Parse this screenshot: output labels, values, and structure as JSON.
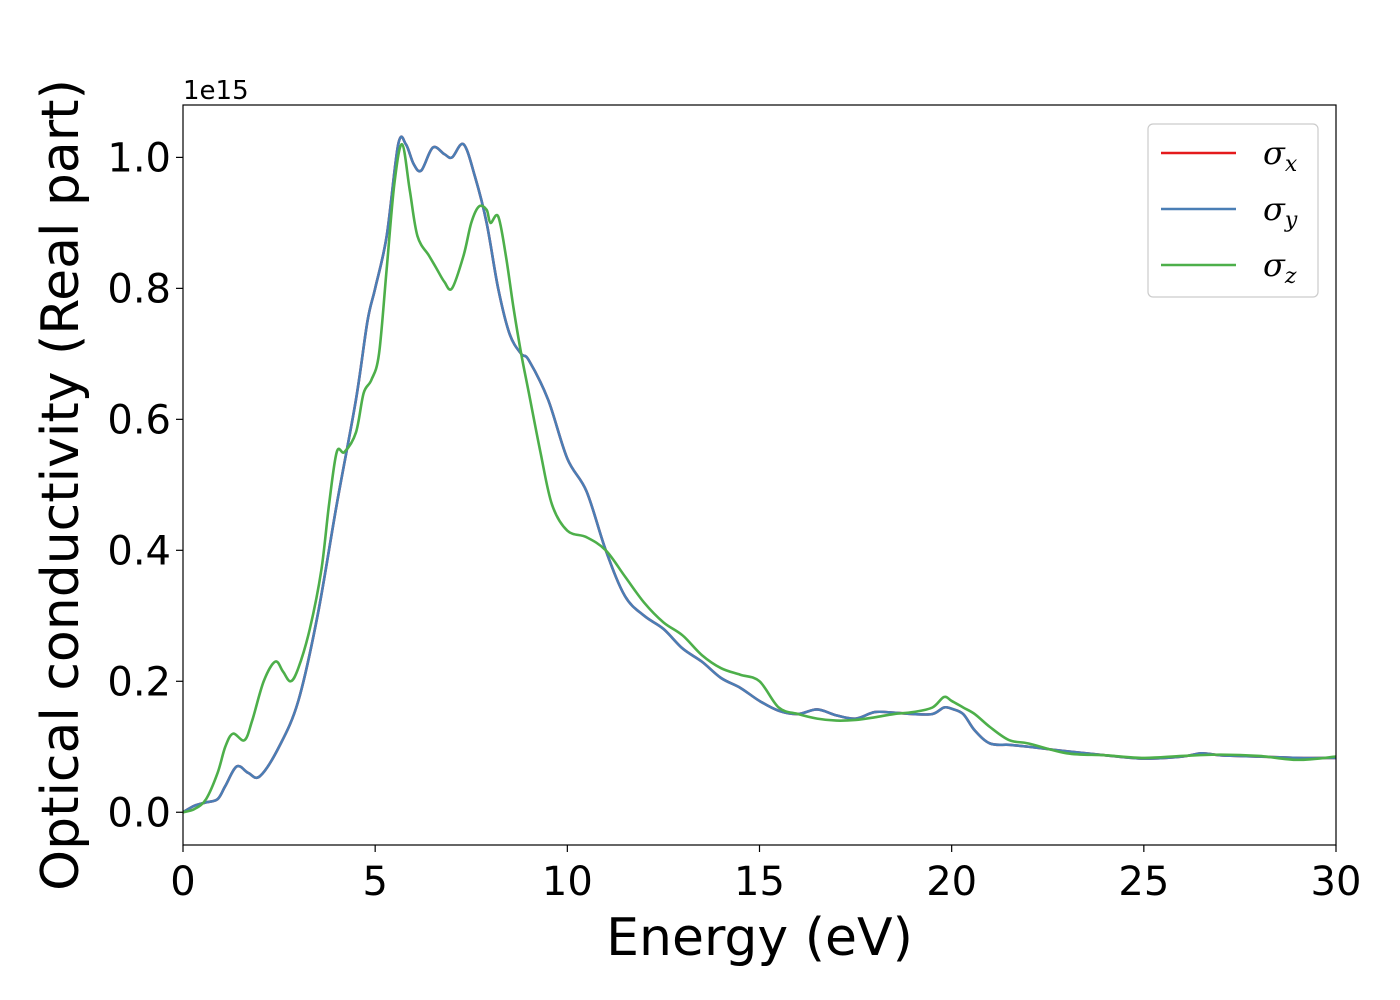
{
  "chart_data": {
    "type": "line",
    "title": "",
    "xlabel": "Energy (eV)",
    "ylabel": "Optical conductivity (Real part)",
    "y_offset_text": "1e15",
    "y_scale": 1000000000000000.0,
    "xlim": [
      0,
      30
    ],
    "ylim": [
      -0.05,
      1.08
    ],
    "x_ticks": [
      0,
      5,
      10,
      15,
      20,
      25,
      30
    ],
    "x_tick_labels": [
      "0",
      "5",
      "10",
      "15",
      "20",
      "25",
      "30"
    ],
    "y_ticks": [
      0.0,
      0.2,
      0.4,
      0.6,
      0.8,
      1.0
    ],
    "y_tick_labels": [
      "0.0",
      "0.2",
      "0.4",
      "0.6",
      "0.8",
      "1.0"
    ],
    "grid": false,
    "legend_position": "top-right",
    "series": [
      {
        "name": "σx",
        "label_base": "σ",
        "label_sub": "x",
        "color": "#e41a1c",
        "x": [
          0,
          0.3,
          0.6,
          0.9,
          1.1,
          1.4,
          1.7,
          2.0,
          2.5,
          3.0,
          3.5,
          4.0,
          4.5,
          4.8,
          5.0,
          5.3,
          5.6,
          5.8,
          6.0,
          6.2,
          6.5,
          6.8,
          7.0,
          7.3,
          7.6,
          7.9,
          8.2,
          8.5,
          8.8,
          9.0,
          9.5,
          10.0,
          10.5,
          11.0,
          11.5,
          12.0,
          12.5,
          13.0,
          13.5,
          14.0,
          14.5,
          15.0,
          15.5,
          16.0,
          16.5,
          17.0,
          17.5,
          18.0,
          18.5,
          19.0,
          19.5,
          19.8,
          20.0,
          20.3,
          20.6,
          21.0,
          21.5,
          22.0,
          23.0,
          24.0,
          25.0,
          26.0,
          26.5,
          27.0,
          28.0,
          29.0,
          30.0
        ],
        "y": [
          0.0,
          0.01,
          0.015,
          0.02,
          0.04,
          0.07,
          0.06,
          0.055,
          0.1,
          0.17,
          0.3,
          0.47,
          0.63,
          0.75,
          0.8,
          0.88,
          1.02,
          1.02,
          0.99,
          0.98,
          1.015,
          1.005,
          1.0,
          1.02,
          0.97,
          0.9,
          0.8,
          0.73,
          0.7,
          0.69,
          0.63,
          0.54,
          0.49,
          0.4,
          0.33,
          0.3,
          0.28,
          0.25,
          0.23,
          0.205,
          0.19,
          0.17,
          0.155,
          0.15,
          0.157,
          0.148,
          0.143,
          0.153,
          0.152,
          0.15,
          0.15,
          0.16,
          0.158,
          0.15,
          0.125,
          0.105,
          0.103,
          0.1,
          0.093,
          0.087,
          0.082,
          0.085,
          0.09,
          0.087,
          0.085,
          0.083,
          0.083
        ]
      },
      {
        "name": "σy",
        "label_base": "σ",
        "label_sub": "y",
        "color": "#4a7eb5",
        "x": [
          0,
          0.3,
          0.6,
          0.9,
          1.1,
          1.4,
          1.7,
          2.0,
          2.5,
          3.0,
          3.5,
          4.0,
          4.5,
          4.8,
          5.0,
          5.3,
          5.6,
          5.8,
          6.0,
          6.2,
          6.5,
          6.8,
          7.0,
          7.3,
          7.6,
          7.9,
          8.2,
          8.5,
          8.8,
          9.0,
          9.5,
          10.0,
          10.5,
          11.0,
          11.5,
          12.0,
          12.5,
          13.0,
          13.5,
          14.0,
          14.5,
          15.0,
          15.5,
          16.0,
          16.5,
          17.0,
          17.5,
          18.0,
          18.5,
          19.0,
          19.5,
          19.8,
          20.0,
          20.3,
          20.6,
          21.0,
          21.5,
          22.0,
          23.0,
          24.0,
          25.0,
          26.0,
          26.5,
          27.0,
          28.0,
          29.0,
          30.0
        ],
        "y": [
          0.0,
          0.01,
          0.015,
          0.02,
          0.04,
          0.07,
          0.06,
          0.055,
          0.1,
          0.17,
          0.3,
          0.47,
          0.63,
          0.75,
          0.8,
          0.88,
          1.02,
          1.02,
          0.99,
          0.98,
          1.015,
          1.005,
          1.0,
          1.02,
          0.97,
          0.9,
          0.8,
          0.73,
          0.7,
          0.69,
          0.63,
          0.54,
          0.49,
          0.4,
          0.33,
          0.3,
          0.28,
          0.25,
          0.23,
          0.205,
          0.19,
          0.17,
          0.155,
          0.15,
          0.157,
          0.148,
          0.143,
          0.153,
          0.152,
          0.15,
          0.15,
          0.16,
          0.158,
          0.15,
          0.125,
          0.105,
          0.103,
          0.1,
          0.093,
          0.087,
          0.082,
          0.085,
          0.09,
          0.087,
          0.085,
          0.083,
          0.083
        ]
      },
      {
        "name": "σz",
        "label_base": "σ",
        "label_sub": "z",
        "color": "#4daf4a",
        "x": [
          0,
          0.3,
          0.6,
          0.9,
          1.1,
          1.3,
          1.6,
          1.8,
          2.1,
          2.4,
          2.6,
          2.8,
          3.0,
          3.3,
          3.6,
          3.8,
          4.0,
          4.2,
          4.5,
          4.7,
          4.9,
          5.1,
          5.3,
          5.5,
          5.7,
          5.9,
          6.1,
          6.4,
          6.6,
          6.8,
          7.0,
          7.3,
          7.5,
          7.7,
          7.9,
          8.0,
          8.2,
          8.4,
          8.6,
          8.8,
          9.0,
          9.3,
          9.6,
          10.0,
          10.5,
          11.0,
          11.5,
          12.0,
          12.5,
          13.0,
          13.5,
          14.0,
          14.5,
          15.0,
          15.5,
          16.0,
          16.5,
          17.0,
          17.5,
          18.0,
          18.5,
          19.0,
          19.5,
          19.8,
          20.0,
          20.3,
          20.6,
          21.0,
          21.5,
          22.0,
          23.0,
          24.0,
          25.0,
          26.0,
          27.0,
          28.0,
          29.0,
          30.0
        ],
        "y": [
          0.0,
          0.005,
          0.02,
          0.06,
          0.1,
          0.12,
          0.11,
          0.14,
          0.2,
          0.23,
          0.215,
          0.2,
          0.22,
          0.28,
          0.37,
          0.47,
          0.55,
          0.55,
          0.58,
          0.64,
          0.66,
          0.7,
          0.83,
          0.96,
          1.02,
          0.95,
          0.88,
          0.85,
          0.83,
          0.81,
          0.8,
          0.85,
          0.9,
          0.925,
          0.92,
          0.9,
          0.91,
          0.85,
          0.77,
          0.7,
          0.64,
          0.55,
          0.47,
          0.43,
          0.42,
          0.4,
          0.36,
          0.32,
          0.29,
          0.27,
          0.24,
          0.22,
          0.21,
          0.2,
          0.16,
          0.15,
          0.143,
          0.14,
          0.141,
          0.145,
          0.15,
          0.153,
          0.16,
          0.176,
          0.17,
          0.16,
          0.15,
          0.13,
          0.11,
          0.105,
          0.09,
          0.087,
          0.083,
          0.086,
          0.088,
          0.086,
          0.08,
          0.085
        ]
      }
    ]
  }
}
